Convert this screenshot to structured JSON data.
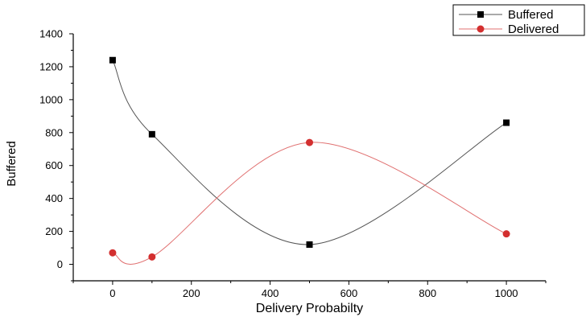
{
  "chart_data": {
    "type": "line",
    "title": "",
    "xlabel": "Delivery Probabilty",
    "ylabel": "Buffered",
    "xlim": [
      -100,
      1100
    ],
    "ylim": [
      -100,
      1400
    ],
    "xticks": [
      0,
      200,
      400,
      600,
      800,
      1000
    ],
    "yticks": [
      0,
      200,
      400,
      600,
      800,
      1000,
      1200,
      1400
    ],
    "grid": false,
    "legend_position": "top-right",
    "series": [
      {
        "name": "Buffered",
        "marker": "square",
        "color": "#000000",
        "line_color": "#555555",
        "smooth": true,
        "x": [
          0,
          100,
          500,
          1000
        ],
        "y": [
          1240,
          790,
          120,
          860
        ]
      },
      {
        "name": "Delivered",
        "marker": "circle",
        "color": "#d32f2f",
        "line_color": "#e07070",
        "smooth": true,
        "x": [
          0,
          100,
          500,
          1000
        ],
        "y": [
          70,
          45,
          740,
          185
        ]
      }
    ]
  }
}
